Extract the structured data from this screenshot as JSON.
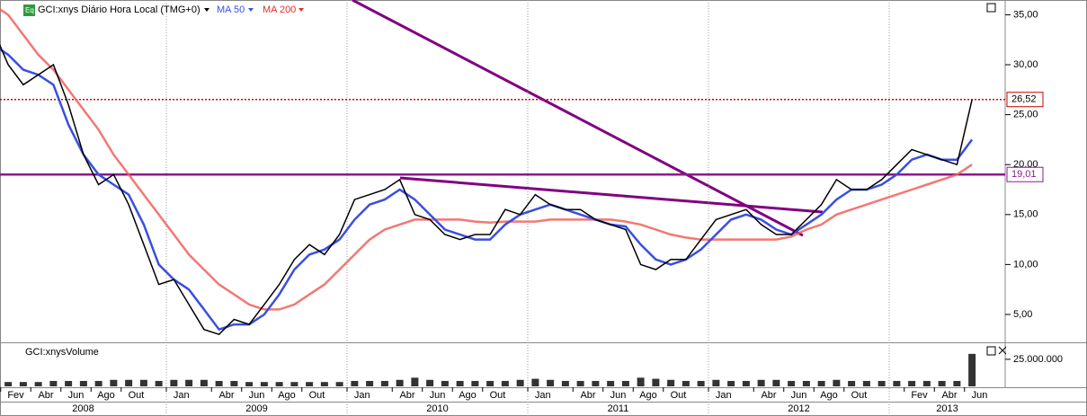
{
  "chart_data": {
    "type": "line",
    "title": "GCI:xnys Diário Hora Local (TMG+0)",
    "icon_label": "Eq",
    "volume_title": "GCI:xnysVolume",
    "x": [
      "2008-01",
      "2008-02",
      "2008-03",
      "2008-04",
      "2008-05",
      "2008-06",
      "2008-07",
      "2008-08",
      "2008-09",
      "2008-10",
      "2008-11",
      "2008-12",
      "2009-01",
      "2009-02",
      "2009-03",
      "2009-04",
      "2009-05",
      "2009-06",
      "2009-07",
      "2009-08",
      "2009-09",
      "2009-10",
      "2009-11",
      "2009-12",
      "2010-01",
      "2010-02",
      "2010-03",
      "2010-04",
      "2010-05",
      "2010-06",
      "2010-07",
      "2010-08",
      "2010-09",
      "2010-10",
      "2010-11",
      "2010-12",
      "2011-01",
      "2011-02",
      "2011-03",
      "2011-04",
      "2011-05",
      "2011-06",
      "2011-07",
      "2011-08",
      "2011-09",
      "2011-10",
      "2011-11",
      "2011-12",
      "2012-01",
      "2012-02",
      "2012-03",
      "2012-04",
      "2012-05",
      "2012-06",
      "2012-07",
      "2012-08",
      "2012-09",
      "2012-10",
      "2012-11",
      "2012-12",
      "2013-01",
      "2013-02",
      "2013-03",
      "2013-04",
      "2013-05",
      "2013-06"
    ],
    "series": [
      {
        "name": "GCI:xnys Diário Hora Local (TMG+0)",
        "color": "#000000",
        "values": [
          33.5,
          30,
          28,
          29,
          30,
          26,
          21,
          18,
          19,
          16,
          12,
          8,
          8.5,
          6,
          3.5,
          3,
          4.5,
          4,
          6,
          8,
          10.5,
          12,
          11,
          13,
          16.5,
          17,
          17.5,
          18.5,
          15,
          14.5,
          13,
          12.5,
          13,
          13,
          15.5,
          15,
          17,
          16,
          15.5,
          15.5,
          14.5,
          14,
          13.5,
          10,
          9.5,
          10.5,
          10.5,
          12.5,
          14.5,
          15,
          15.5,
          14,
          13,
          13,
          14.5,
          16,
          18.5,
          17.5,
          17.5,
          18.5,
          20,
          21.5,
          21,
          20.5,
          20,
          26.5
        ]
      },
      {
        "name": "MA 50",
        "color": "#3a4fe0",
        "values": [
          32,
          31,
          29.5,
          29,
          28,
          24,
          21,
          19,
          18,
          17,
          14,
          10,
          8.5,
          7.5,
          5.5,
          3.5,
          4,
          4,
          5,
          7,
          9.5,
          11,
          11.5,
          12.5,
          14.5,
          16,
          16.5,
          17.5,
          16.5,
          15,
          13.5,
          13,
          12.5,
          12.5,
          14,
          15,
          15.5,
          16,
          15.5,
          15,
          14.5,
          14,
          13.8,
          12,
          10.5,
          10,
          10.5,
          11.5,
          13,
          14.5,
          15,
          14.5,
          13.5,
          13,
          14,
          15,
          16.5,
          17.5,
          17.5,
          18,
          19,
          20.5,
          21,
          20.5,
          20.5,
          22.5
        ]
      },
      {
        "name": "MA 200",
        "color": "#f0605a",
        "values": [
          36,
          35,
          33,
          31,
          29.5,
          27.5,
          25.5,
          23.5,
          21,
          19,
          17,
          15,
          13,
          11,
          9.5,
          8,
          7,
          6,
          5.5,
          5.5,
          6,
          7,
          8,
          9.5,
          11,
          12.5,
          13.5,
          14,
          14.5,
          14.5,
          14.5,
          14.5,
          14.3,
          14.2,
          14.3,
          14.3,
          14.3,
          14.5,
          14.5,
          14.5,
          14.5,
          14.5,
          14.3,
          14,
          13.5,
          13,
          12.7,
          12.5,
          12.5,
          12.5,
          12.5,
          12.5,
          12.5,
          12.8,
          13.5,
          14,
          15,
          15.5,
          16,
          16.5,
          17,
          17.5,
          18,
          18.5,
          19,
          20
        ]
      }
    ],
    "volume": {
      "color": "#000000",
      "values": [
        5,
        4,
        4,
        4,
        5,
        5,
        5,
        5,
        6,
        6,
        6,
        5,
        6,
        6,
        6,
        5,
        5,
        4,
        4,
        4,
        4,
        4,
        4,
        4,
        5,
        5,
        5,
        6,
        8,
        6,
        5,
        5,
        5,
        5,
        5,
        6,
        7,
        6,
        5,
        5,
        5,
        5,
        5,
        8,
        7,
        6,
        5,
        5,
        6,
        5,
        5,
        6,
        6,
        5,
        5,
        5,
        6,
        5,
        5,
        5,
        5,
        5,
        5,
        5,
        5,
        30
      ],
      "ylim": [
        0,
        39000000
      ],
      "unit": 1000000,
      "yticks": [
        {
          "value": 25000000,
          "label": "25.000.000"
        }
      ]
    },
    "reference_lines": [
      {
        "value": 26.52,
        "label": "26,52",
        "color": "#cc0000",
        "style": "dotted"
      },
      {
        "value": 19.01,
        "label": "19,01",
        "color": "#8b1a8b",
        "style": "solid"
      }
    ],
    "ylim": [
      2.3,
      36.3
    ],
    "yticks": [
      {
        "value": 5,
        "label": "5,00"
      },
      {
        "value": 10,
        "label": "10,00"
      },
      {
        "value": 15,
        "label": "15,00"
      },
      {
        "value": 20,
        "label": "20,00"
      },
      {
        "value": 25,
        "label": "25,00"
      },
      {
        "value": 30,
        "label": "30,00"
      },
      {
        "value": 35,
        "label": "35,00"
      }
    ],
    "month_ticks": [
      {
        "value": "2008-02",
        "label": "Fev"
      },
      {
        "value": "2008-04",
        "label": "Abr"
      },
      {
        "value": "2008-06",
        "label": "Jun"
      },
      {
        "value": "2008-08",
        "label": "Ago"
      },
      {
        "value": "2008-10",
        "label": "Out"
      },
      {
        "value": "2009-01",
        "label": "Jan"
      },
      {
        "value": "2009-04",
        "label": "Abr"
      },
      {
        "value": "2009-06",
        "label": "Jun"
      },
      {
        "value": "2009-08",
        "label": "Ago"
      },
      {
        "value": "2009-10",
        "label": "Out"
      },
      {
        "value": "2010-01",
        "label": "Jan"
      },
      {
        "value": "2010-04",
        "label": "Abr"
      },
      {
        "value": "2010-06",
        "label": "Jun"
      },
      {
        "value": "2010-08",
        "label": "Ago"
      },
      {
        "value": "2010-10",
        "label": "Out"
      },
      {
        "value": "2011-01",
        "label": "Jan"
      },
      {
        "value": "2011-04",
        "label": "Abr"
      },
      {
        "value": "2011-06",
        "label": "Jun"
      },
      {
        "value": "2011-08",
        "label": "Ago"
      },
      {
        "value": "2011-10",
        "label": "Out"
      },
      {
        "value": "2012-01",
        "label": "Jan"
      },
      {
        "value": "2012-04",
        "label": "Abr"
      },
      {
        "value": "2012-06",
        "label": "Jun"
      },
      {
        "value": "2012-08",
        "label": "Ago"
      },
      {
        "value": "2012-10",
        "label": "Out"
      },
      {
        "value": "2013-02",
        "label": "Fev"
      },
      {
        "value": "2013-04",
        "label": "Abr"
      },
      {
        "value": "2013-06",
        "label": "Jun"
      }
    ],
    "years": [
      "2008",
      "2009",
      "2010",
      "2011",
      "2012",
      "2013"
    ]
  }
}
